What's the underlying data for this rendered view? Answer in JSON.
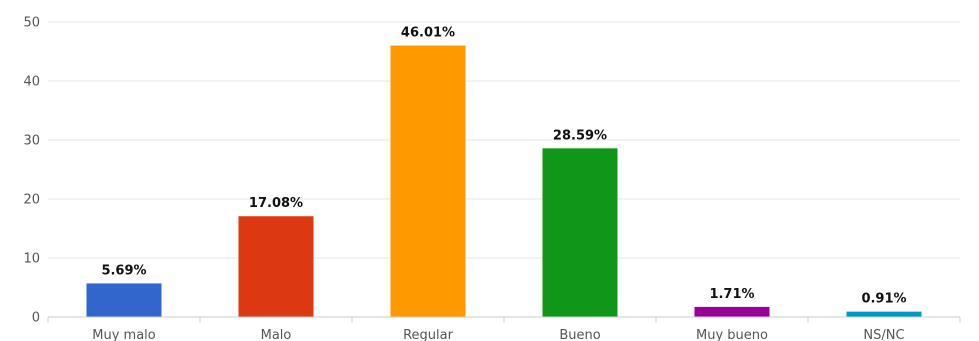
{
  "chart_data": {
    "type": "bar",
    "categories": [
      "Muy malo",
      "Malo",
      "Regular",
      "Bueno",
      "Muy bueno",
      "NS/NC"
    ],
    "values": [
      5.69,
      17.08,
      46.01,
      28.59,
      1.71,
      0.91
    ],
    "data_labels": [
      "5.69%",
      "17.08%",
      "46.01%",
      "28.59%",
      "1.71%",
      "0.91%"
    ],
    "colors": [
      "#3366cc",
      "#dc3912",
      "#ff9900",
      "#109618",
      "#990099",
      "#0099c6"
    ],
    "yticks": [
      0,
      10,
      20,
      30,
      40,
      50
    ],
    "ylim": [
      0,
      50
    ],
    "grid": true,
    "legend": "none"
  }
}
